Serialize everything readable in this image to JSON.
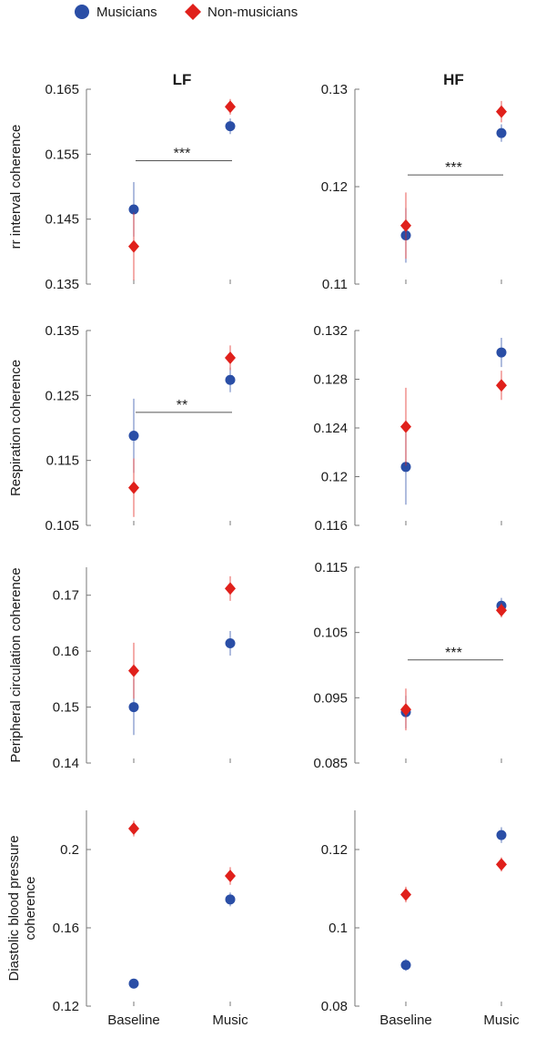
{
  "legend": {
    "items": [
      {
        "name": "Musicians",
        "color": "#2a4ea6",
        "marker": "circle"
      },
      {
        "name": "Non-musicians",
        "color": "#e0201b",
        "marker": "diamond"
      }
    ]
  },
  "columns": [
    "LF",
    "HF"
  ],
  "x_categories": [
    "Baseline",
    "Music"
  ],
  "chart_data": [
    {
      "type": "scatter",
      "column": "LF",
      "row": 0,
      "title": "LF",
      "ylabel": "rr interval coherence",
      "ylim": [
        0.135,
        0.165
      ],
      "yticks": [
        "0.135",
        "0.145",
        "0.155",
        "0.165"
      ],
      "categories": [
        "Baseline",
        "Music"
      ],
      "series": [
        {
          "name": "Musicians",
          "values": [
            0.1465,
            0.1593
          ],
          "errors": [
            0.0042,
            0.0012
          ]
        },
        {
          "name": "Non-musicians",
          "values": [
            0.1408,
            0.1623
          ],
          "errors": [
            0.0052,
            0.0012
          ]
        }
      ],
      "significance": {
        "label": "***",
        "y": 0.154
      }
    },
    {
      "type": "scatter",
      "column": "HF",
      "row": 0,
      "title": "HF",
      "ylabel": "",
      "ylim": [
        0.11,
        0.13
      ],
      "yticks": [
        "0.11",
        "0.12",
        "0.13"
      ],
      "categories": [
        "Baseline",
        "Music"
      ],
      "series": [
        {
          "name": "Musicians",
          "values": [
            0.115,
            0.1255
          ],
          "errors": [
            0.0028,
            0.0009
          ]
        },
        {
          "name": "Non-musicians",
          "values": [
            0.116,
            0.1277
          ],
          "errors": [
            0.0034,
            0.0011
          ]
        }
      ],
      "significance": {
        "label": "***",
        "y": 0.1212
      }
    },
    {
      "type": "scatter",
      "column": "LF",
      "row": 1,
      "title": "",
      "ylabel": "Respiration coherence",
      "ylim": [
        0.105,
        0.135
      ],
      "yticks": [
        "0.105",
        "0.115",
        "0.125",
        "0.135"
      ],
      "categories": [
        "Baseline",
        "Music"
      ],
      "series": [
        {
          "name": "Musicians",
          "values": [
            0.1188,
            0.1274
          ],
          "errors": [
            0.0057,
            0.0019
          ]
        },
        {
          "name": "Non-musicians",
          "values": [
            0.1108,
            0.1308
          ],
          "errors": [
            0.0045,
            0.0019
          ]
        }
      ],
      "significance": {
        "label": "**",
        "y": 0.1224
      }
    },
    {
      "type": "scatter",
      "column": "HF",
      "row": 1,
      "title": "",
      "ylabel": "",
      "ylim": [
        0.116,
        0.132
      ],
      "yticks": [
        "0.116",
        "0.12",
        "0.124",
        "0.128",
        "0.132"
      ],
      "categories": [
        "Baseline",
        "Music"
      ],
      "series": [
        {
          "name": "Musicians",
          "values": [
            0.1208,
            0.1302
          ],
          "errors": [
            0.0031,
            0.0012
          ]
        },
        {
          "name": "Non-musicians",
          "values": [
            0.1241,
            0.1275
          ],
          "errors": [
            0.0032,
            0.0012
          ]
        }
      ],
      "significance": null
    },
    {
      "type": "scatter",
      "column": "LF",
      "row": 2,
      "title": "",
      "ylabel": "Peripheral circulation coherence",
      "ylim": [
        0.14,
        0.175
      ],
      "yticks": [
        "0.14",
        "0.15",
        "0.16",
        "0.17"
      ],
      "categories": [
        "Baseline",
        "Music"
      ],
      "series": [
        {
          "name": "Musicians",
          "values": [
            0.15,
            0.1614
          ],
          "errors": [
            0.005,
            0.0022
          ]
        },
        {
          "name": "Non-musicians",
          "values": [
            0.1565,
            0.1712
          ],
          "errors": [
            0.005,
            0.0022
          ]
        }
      ],
      "significance": null
    },
    {
      "type": "scatter",
      "column": "HF",
      "row": 2,
      "title": "",
      "ylabel": "",
      "ylim": [
        0.085,
        0.115
      ],
      "yticks": [
        "0.085",
        "0.095",
        "0.105",
        "0.115"
      ],
      "categories": [
        "Baseline",
        "Music"
      ],
      "series": [
        {
          "name": "Musicians",
          "values": [
            0.0928,
            0.1091
          ],
          "errors": [
            0.0025,
            0.0012
          ]
        },
        {
          "name": "Non-musicians",
          "values": [
            0.0932,
            0.1084
          ],
          "errors": [
            0.0032,
            0.0011
          ]
        }
      ],
      "significance": {
        "label": "***",
        "y": 0.1008
      }
    },
    {
      "type": "scatter",
      "column": "LF",
      "row": 3,
      "title": "",
      "ylabel": "Diastolic blood pressure coherence",
      "ylim": [
        0.12,
        0.22
      ],
      "yticks": [
        "0.12",
        "0.16",
        "0.2"
      ],
      "categories": [
        "Baseline",
        "Music"
      ],
      "series": [
        {
          "name": "Musicians",
          "values": [
            0.1315,
            0.1745
          ],
          "errors": [
            0.0025,
            0.0035
          ]
        },
        {
          "name": "Non-musicians",
          "values": [
            0.2107,
            0.1865
          ],
          "errors": [
            0.004,
            0.0045
          ]
        }
      ],
      "significance": null
    },
    {
      "type": "scatter",
      "column": "HF",
      "row": 3,
      "title": "",
      "ylabel": "",
      "ylim": [
        0.08,
        0.13
      ],
      "yticks": [
        "0.08",
        "0.1",
        "0.12"
      ],
      "categories": [
        "Baseline",
        "Music"
      ],
      "series": [
        {
          "name": "Musicians",
          "values": [
            0.0905,
            0.1237
          ],
          "errors": [
            0.0015,
            0.002
          ]
        },
        {
          "name": "Non-musicians",
          "values": [
            0.1085,
            0.1162
          ],
          "errors": [
            0.002,
            0.0018
          ]
        }
      ],
      "significance": null
    }
  ]
}
